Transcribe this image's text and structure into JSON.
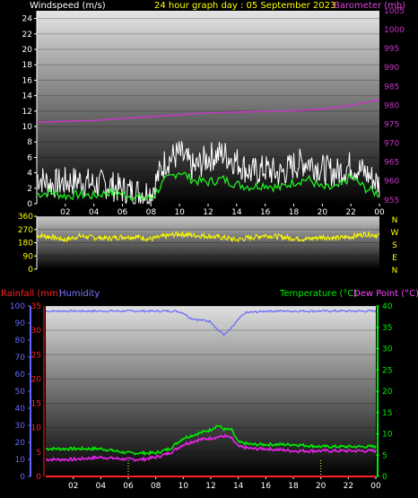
{
  "header": {
    "windspeed_label": "Windspeed (m/s)",
    "title": "24 hour graph day : 05 September 2023",
    "barometer_label": "Barometer (mb)"
  },
  "bottom_header": {
    "rainfall_label": "Rainfall (mm)",
    "humidity_label": "Humidity",
    "temperature_label": "Temperature (°C)",
    "dewpoint_label": "Dew Point (°C)"
  },
  "colors": {
    "windspeed": "#ffffff",
    "wind_avg": "#22ee22",
    "barometer": "#cc33cc",
    "direction": "#ffff00",
    "rainfall": "#ff2222",
    "humidity": "#6666ff",
    "temperature": "#00ee00",
    "dewpoint": "#ee22ee",
    "title": "#ffff00"
  },
  "chart_data": [
    {
      "type": "line",
      "name": "wind-barometer",
      "x_ticks": [
        "02",
        "04",
        "06",
        "08",
        "10",
        "12",
        "14",
        "16",
        "18",
        "20",
        "22",
        "00"
      ],
      "left_axis": {
        "ticks": [
          "0",
          "2",
          "4",
          "6",
          "8",
          "10",
          "12",
          "14",
          "16",
          "18",
          "20",
          "22",
          "24"
        ],
        "range": [
          0,
          25
        ]
      },
      "right_axis": {
        "ticks": [
          "955",
          "960",
          "965",
          "970",
          "975",
          "980",
          "985",
          "990",
          "995",
          "1000",
          "1005"
        ],
        "range": [
          954,
          1005
        ]
      },
      "series": [
        {
          "label": "gust",
          "x": [
            0,
            1,
            2,
            3,
            4,
            5,
            6,
            7,
            8,
            9,
            10,
            11,
            12,
            13,
            14,
            15,
            16,
            17,
            18,
            19,
            20,
            21,
            22,
            23,
            24
          ],
          "y": [
            3.5,
            2.5,
            2.8,
            3.0,
            2.5,
            2.5,
            1.8,
            1.5,
            1.5,
            5.5,
            6.5,
            4.5,
            6.0,
            6.5,
            5.5,
            4.0,
            4.5,
            3.8,
            5.0,
            5.5,
            4.5,
            4.0,
            5.0,
            4.0,
            2.5
          ]
        },
        {
          "label": "average",
          "x": [
            0,
            1,
            2,
            3,
            4,
            5,
            6,
            7,
            8,
            9,
            10,
            11,
            12,
            13,
            14,
            15,
            16,
            17,
            18,
            19,
            20,
            21,
            22,
            23,
            24
          ],
          "y": [
            1.2,
            1.5,
            1.0,
            1.2,
            1.0,
            1.5,
            1.3,
            0.8,
            0.7,
            3.0,
            4.2,
            3.0,
            2.8,
            3.2,
            2.5,
            2.2,
            2.5,
            2.0,
            2.8,
            3.2,
            2.0,
            2.0,
            3.5,
            2.0,
            1.2
          ]
        },
        {
          "label": "barometer",
          "axis": "right",
          "x": [
            0,
            2,
            4,
            6,
            8,
            10,
            12,
            14,
            16,
            18,
            20,
            22,
            24
          ],
          "y": [
            975.5,
            975.8,
            976,
            976.5,
            977,
            977.5,
            978,
            978.2,
            978.4,
            978.6,
            979,
            980,
            981.5
          ]
        }
      ]
    },
    {
      "type": "line",
      "name": "wind-direction",
      "left_axis": {
        "ticks": [
          "360",
          "270",
          "180",
          "90",
          "0"
        ],
        "range": [
          0,
          360
        ]
      },
      "right_axis_labels": [
        "N",
        "W",
        "S",
        "E",
        "N"
      ],
      "x_ticks": [],
      "series": [
        {
          "label": "direction",
          "x": [
            0,
            1,
            2,
            3,
            4,
            5,
            6,
            7,
            8,
            9,
            10,
            11,
            12,
            13,
            14,
            15,
            16,
            17,
            18,
            19,
            20,
            21,
            22,
            23,
            24
          ],
          "y": [
            230,
            220,
            200,
            225,
            215,
            210,
            220,
            220,
            205,
            225,
            240,
            230,
            225,
            215,
            200,
            215,
            230,
            220,
            210,
            205,
            220,
            210,
            220,
            240,
            230
          ]
        }
      ]
    },
    {
      "type": "line",
      "name": "rain-humidity-temp",
      "x_ticks": [
        "02",
        "04",
        "06",
        "08",
        "10",
        "12",
        "14",
        "16",
        "18",
        "20",
        "22",
        "00"
      ],
      "left_axis": {
        "ticks": [
          "0",
          "10",
          "20",
          "30",
          "40",
          "50",
          "60",
          "70",
          "80",
          "90",
          "100"
        ],
        "range": [
          0,
          100
        ]
      },
      "rain_axis": {
        "ticks": [
          "0",
          "5",
          "10",
          "15",
          "20",
          "25",
          "30",
          "35"
        ],
        "range": [
          0,
          35
        ]
      },
      "right_axis": {
        "ticks": [
          "0",
          "5",
          "10",
          "15",
          "20",
          "25",
          "30",
          "35",
          "40"
        ],
        "range": [
          0,
          40
        ]
      },
      "series": [
        {
          "label": "humidity",
          "axis": "left",
          "x": [
            0,
            4,
            8,
            9.5,
            10,
            10.5,
            11,
            12,
            12.5,
            13,
            13.5,
            14,
            14.5,
            16,
            20,
            24
          ],
          "y": [
            97,
            97,
            97,
            97,
            96,
            93,
            92,
            91,
            86,
            83,
            87,
            92,
            96,
            97,
            97,
            97
          ]
        },
        {
          "label": "temperature",
          "axis": "right",
          "x": [
            0,
            2,
            4,
            6,
            7,
            8,
            9,
            10,
            11,
            12,
            12.5,
            13,
            13.5,
            14,
            15,
            16,
            18,
            20,
            22,
            24
          ],
          "y": [
            6.5,
            6.5,
            6.5,
            5.5,
            5.5,
            5.5,
            6.5,
            9,
            10,
            11,
            12,
            11,
            11,
            8,
            7.5,
            7.5,
            7.5,
            7,
            7,
            7
          ]
        },
        {
          "label": "dewpoint",
          "axis": "right",
          "x": [
            0,
            2,
            4,
            6,
            7,
            8,
            9,
            10,
            11,
            12,
            13,
            13.5,
            14,
            15,
            16,
            18,
            20,
            22,
            24
          ],
          "y": [
            4,
            4,
            4.5,
            4,
            4,
            4.5,
            5.5,
            7.5,
            8.5,
            9,
            9.5,
            9,
            7,
            6.5,
            6.5,
            6,
            6,
            6,
            6
          ]
        },
        {
          "label": "rainfall",
          "axis": "rain",
          "x": [
            0,
            24
          ],
          "y": [
            0,
            0
          ]
        }
      ]
    }
  ]
}
